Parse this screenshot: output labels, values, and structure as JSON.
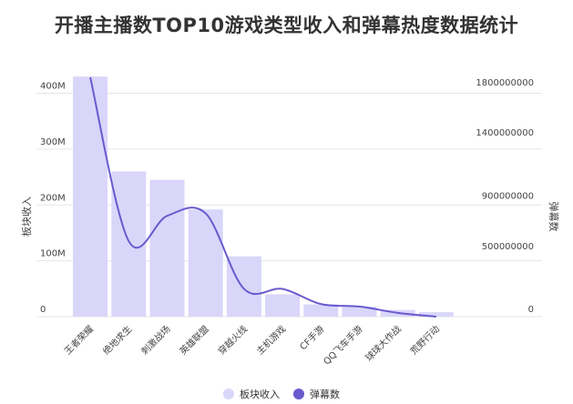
{
  "chart_data": {
    "type": "bar",
    "title": "开播主播数TOP10游戏类型收入和弹幕热度数据统计",
    "categories": [
      "王者荣耀",
      "绝地求生",
      "刺激战场",
      "英雄联盟",
      "穿越火线",
      "主机游戏",
      "CF手游",
      "QQ飞车手游",
      "球球大作战",
      "荒野行动"
    ],
    "series": [
      {
        "name": "板块收入",
        "type": "bar",
        "axis": "left",
        "color": "#d9d6fa",
        "values": [
          430000000,
          260000000,
          245000000,
          192000000,
          108000000,
          40000000,
          22000000,
          18000000,
          12000000,
          8000000
        ]
      },
      {
        "name": "弹幕数",
        "type": "line",
        "axis": "right",
        "color": "#6a5acd",
        "values": [
          1900000000,
          600000000,
          800000000,
          820000000,
          220000000,
          220000000,
          100000000,
          80000000,
          30000000,
          0
        ]
      }
    ],
    "y_left": {
      "label": "板块收入",
      "range": [
        0,
        440000000
      ],
      "ticks": [
        {
          "value": 0,
          "label": "0"
        },
        {
          "value": 100000000,
          "label": "100M"
        },
        {
          "value": 200000000,
          "label": "200M"
        },
        {
          "value": 300000000,
          "label": "300M"
        },
        {
          "value": 400000000,
          "label": "400M"
        }
      ]
    },
    "y_right": {
      "label": "弹幕数",
      "range": [
        0,
        1950000000
      ],
      "ticks": [
        {
          "value": 0,
          "label": "0"
        },
        {
          "value": 500000000,
          "label": "500000000"
        },
        {
          "value": 900000000,
          "label": "900000000"
        },
        {
          "value": 1400000000,
          "label": "1400000000"
        },
        {
          "value": 1800000000,
          "label": "1800000000"
        }
      ]
    },
    "grid": true,
    "legend_position": "bottom"
  }
}
